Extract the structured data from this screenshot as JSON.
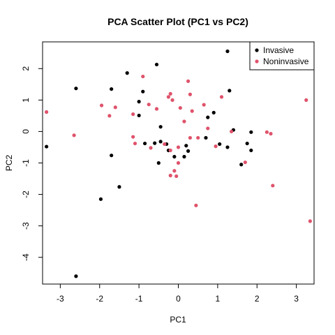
{
  "chart_data": {
    "type": "scatter",
    "title": "PCA Scatter Plot (PC1 vs PC2)",
    "xlabel": "PC1",
    "ylabel": "PC2",
    "xlim": [
      -3.45,
      3.45
    ],
    "ylim": [
      -4.85,
      2.85
    ],
    "x_ticks": [
      -3,
      -2,
      -1,
      0,
      1,
      2,
      3
    ],
    "y_ticks": [
      -4,
      -3,
      -2,
      -1,
      0,
      1,
      2
    ],
    "grid": false,
    "legend_position": "top-right",
    "series": [
      {
        "name": "Invasive",
        "color": "#000000",
        "points": [
          [
            -2.6,
            1.37
          ],
          [
            -2.6,
            -4.6
          ],
          [
            -3.35,
            -0.48
          ],
          [
            -1.97,
            -2.15
          ],
          [
            -1.7,
            -0.76
          ],
          [
            -1.5,
            -1.76
          ],
          [
            -1.7,
            1.35
          ],
          [
            -1.3,
            1.86
          ],
          [
            -1.0,
            0.95
          ],
          [
            -0.9,
            1.27
          ],
          [
            -1.0,
            0.51
          ],
          [
            -0.85,
            -0.38
          ],
          [
            -0.55,
            2.13
          ],
          [
            -0.6,
            -0.37
          ],
          [
            -0.45,
            -0.32
          ],
          [
            -0.45,
            0.15
          ],
          [
            -0.3,
            -0.4
          ],
          [
            -0.25,
            -0.6
          ],
          [
            -0.5,
            -1.0
          ],
          [
            -0.1,
            -0.8
          ],
          [
            0.15,
            -0.8
          ],
          [
            0.2,
            -0.45
          ],
          [
            0.25,
            -0.62
          ],
          [
            0.7,
            -0.2
          ],
          [
            0.75,
            0.45
          ],
          [
            0.9,
            0.6
          ],
          [
            1.25,
            2.55
          ],
          [
            1.3,
            1.3
          ],
          [
            1.05,
            -0.4
          ],
          [
            1.25,
            -0.5
          ],
          [
            1.4,
            0.05
          ],
          [
            1.6,
            -1.05
          ],
          [
            1.75,
            -0.38
          ],
          [
            1.85,
            -0.6
          ],
          [
            1.85,
            -0.02
          ]
        ]
      },
      {
        "name": "Noninvasive",
        "color": "#DF536B",
        "points": [
          [
            -3.35,
            0.62
          ],
          [
            -2.65,
            -0.12
          ],
          [
            -1.95,
            0.83
          ],
          [
            -1.75,
            0.5
          ],
          [
            -1.6,
            0.77
          ],
          [
            -1.15,
            0.55
          ],
          [
            -1.1,
            -0.38
          ],
          [
            -1.15,
            -0.17
          ],
          [
            -0.9,
            1.75
          ],
          [
            -0.75,
            0.86
          ],
          [
            -0.7,
            -0.52
          ],
          [
            -0.55,
            0.72
          ],
          [
            -0.25,
            1.1
          ],
          [
            -0.2,
            1.2
          ],
          [
            -0.15,
            1.0
          ],
          [
            -0.35,
            -0.4
          ],
          [
            -0.2,
            -0.6
          ],
          [
            0.0,
            -0.5
          ],
          [
            0.05,
            0.75
          ],
          [
            -0.1,
            -1.25
          ],
          [
            0.0,
            -1.0
          ],
          [
            -0.05,
            -1.42
          ],
          [
            -0.2,
            -1.4
          ],
          [
            0.15,
            0.32
          ],
          [
            0.25,
            1.6
          ],
          [
            0.3,
            1.18
          ],
          [
            0.35,
            0.65
          ],
          [
            0.5,
            -0.2
          ],
          [
            0.3,
            -0.2
          ],
          [
            0.45,
            -2.35
          ],
          [
            0.65,
            0.85
          ],
          [
            0.75,
            0.1
          ],
          [
            0.95,
            -0.47
          ],
          [
            1.1,
            1.1
          ],
          [
            1.35,
            0.0
          ],
          [
            1.7,
            -0.98
          ],
          [
            2.25,
            -0.02
          ],
          [
            2.35,
            -0.07
          ],
          [
            2.4,
            -1.72
          ],
          [
            3.25,
            1.0
          ],
          [
            3.35,
            -2.85
          ]
        ]
      }
    ]
  }
}
